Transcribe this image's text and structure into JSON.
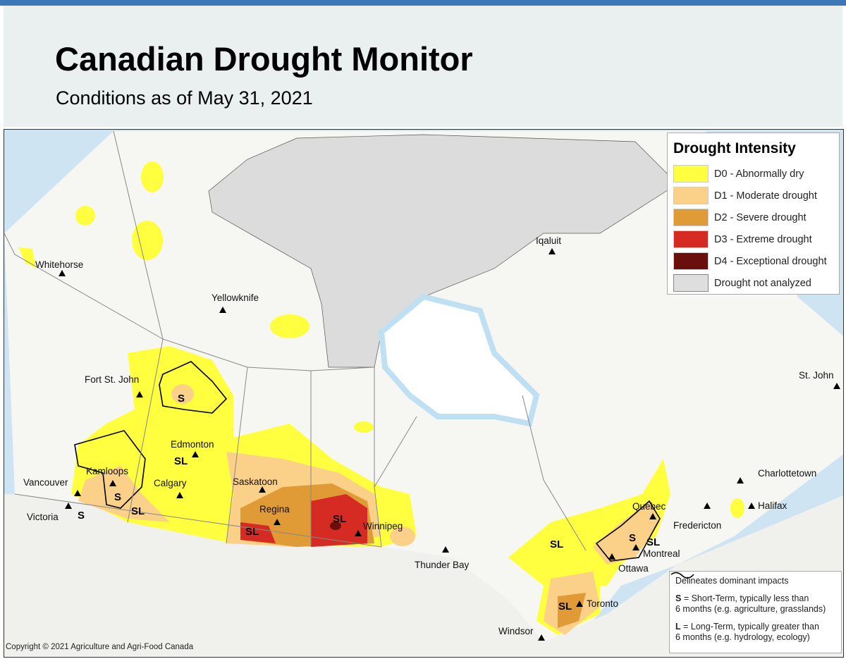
{
  "header": {
    "title": "Canadian Drought Monitor",
    "subtitle": "Conditions as of May 31, 2021"
  },
  "legend": {
    "title": "Drought Intensity",
    "items": [
      {
        "label": "D0 - Abnormally dry",
        "color": "#ffff40"
      },
      {
        "label": "D1 - Moderate drought",
        "color": "#fbd088"
      },
      {
        "label": "D2 - Severe drought",
        "color": "#e09a36"
      },
      {
        "label": "D3 - Extreme drought",
        "color": "#d62b22"
      },
      {
        "label": "D4 - Exceptional drought",
        "color": "#6b0f0c"
      },
      {
        "label": "Drought not analyzed",
        "color": "#dedede"
      }
    ]
  },
  "impacts_legend": {
    "line": "Delineates dominant impacts",
    "s_key": "S",
    "s_text": " = Short-Term, typically less than",
    "s_text2": "6 months (e.g. agriculture, grasslands)",
    "l_key": "L",
    "l_text": " = Long-Term, typically greater  than",
    "l_text2": "6 months (e.g. hydrology, ecology)"
  },
  "cities": [
    "Whitehorse",
    "Yellowknife",
    "Iqaluit",
    "Fort St. John",
    "Edmonton",
    "Kamloops",
    "Vancouver",
    "Victoria",
    "Calgary",
    "Saskatoon",
    "Regina",
    "Winnipeg",
    "Thunder Bay",
    "Toronto",
    "Windsor",
    "Ottawa",
    "Montreal",
    "Quebec",
    "Fredericton",
    "Halifax",
    "Charlottetown",
    "St. John"
  ],
  "impact_labels": [
    "S",
    "SL",
    "S",
    "SL",
    "S",
    "SL",
    "SL",
    "SL",
    "S",
    "SL",
    "SL"
  ],
  "copyright": "Copyright © 2021 Agriculture and Agri-Food Canada"
}
